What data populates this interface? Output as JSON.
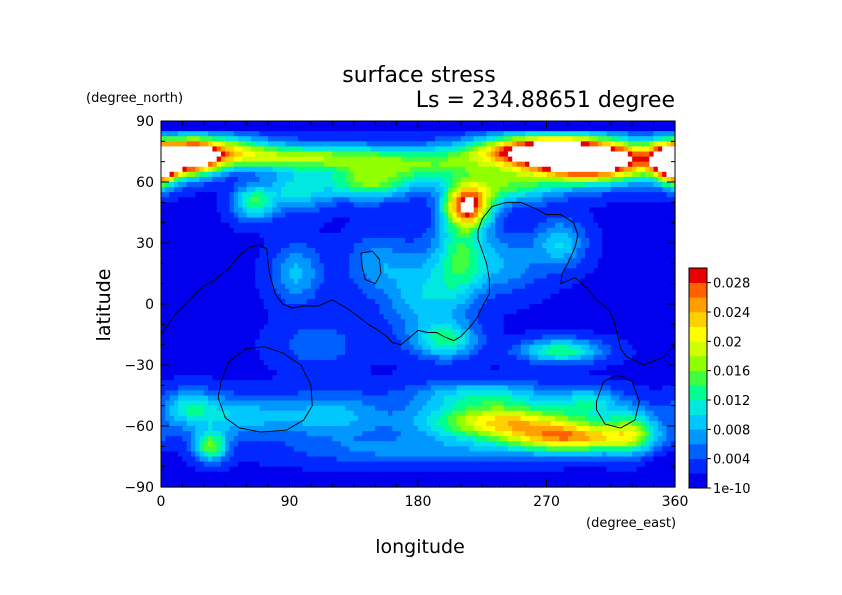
{
  "chart_data": {
    "type": "heatmap",
    "title": "surface stress",
    "subtitle": "Ls = 234.88651 degree",
    "xlabel": "longitude",
    "ylabel": "latitude",
    "x_unit": "(degree_east)",
    "y_unit": "(degree_north)",
    "xlim": [
      0,
      360
    ],
    "ylim": [
      -90,
      90
    ],
    "x_ticks": [
      0,
      90,
      180,
      270,
      360
    ],
    "y_ticks": [
      -90,
      -60,
      -30,
      0,
      30,
      60,
      90
    ],
    "x_tick_labels": [
      "0",
      "90",
      "180",
      "270",
      "360"
    ],
    "y_tick_labels": [
      "−90",
      "−60",
      "−30",
      "0",
      "30",
      "60",
      "90"
    ],
    "colorbar": {
      "min_label": "1e-10",
      "labels": [
        "1e-10",
        "0.004",
        "0.008",
        "0.012",
        "0.016",
        "0.02",
        "0.024",
        "0.028"
      ],
      "label_values": [
        0,
        0.004,
        0.008,
        0.012,
        0.016,
        0.02,
        0.024,
        0.028
      ],
      "vmin": 0,
      "vmax": 0.03,
      "levels": 15,
      "placement": "right",
      "colors": [
        "#0000ee",
        "#0028ff",
        "#0060ff",
        "#0098ff",
        "#00c8ff",
        "#00e8e0",
        "#00ff90",
        "#40ff40",
        "#90ff00",
        "#d0ff00",
        "#ffff00",
        "#ffd000",
        "#ffa000",
        "#ff6000",
        "#e80000"
      ]
    },
    "saturated_color": "#ffffff",
    "contour_color": "#000000",
    "blobs": [
      {
        "lon": 180,
        "lat": 72,
        "sx": 200,
        "sy": 5,
        "amp": 0.008
      },
      {
        "lon": 20,
        "lat": 72,
        "sx": 14,
        "sy": 6,
        "amp": 0.03
      },
      {
        "lon": 45,
        "lat": 76,
        "sx": 22,
        "sy": 5,
        "amp": 0.012
      },
      {
        "lon": 0,
        "lat": 66,
        "sx": 8,
        "sy": 6,
        "amp": 0.02
      },
      {
        "lon": 300,
        "lat": 70,
        "sx": 30,
        "sy": 7,
        "amp": 0.034
      },
      {
        "lon": 262,
        "lat": 76,
        "sx": 30,
        "sy": 5,
        "amp": 0.022
      },
      {
        "lon": 355,
        "lat": 72,
        "sx": 10,
        "sy": 6,
        "amp": 0.02
      },
      {
        "lon": 100,
        "lat": 72,
        "sx": 40,
        "sy": 4,
        "amp": 0.008
      },
      {
        "lon": 190,
        "lat": 66,
        "sx": 30,
        "sy": 5,
        "amp": 0.007
      },
      {
        "lon": 145,
        "lat": 60,
        "sx": 22,
        "sy": 6,
        "amp": 0.014
      },
      {
        "lon": 65,
        "lat": 50,
        "sx": 10,
        "sy": 6,
        "amp": 0.012
      },
      {
        "lon": 95,
        "lat": 56,
        "sx": 15,
        "sy": 7,
        "amp": 0.009
      },
      {
        "lon": 215,
        "lat": 48,
        "sx": 11,
        "sy": 7,
        "amp": 0.026
      },
      {
        "lon": 240,
        "lat": 58,
        "sx": 25,
        "sy": 6,
        "amp": 0.012
      },
      {
        "lon": 210,
        "lat": 25,
        "sx": 12,
        "sy": 15,
        "amp": 0.01
      },
      {
        "lon": 185,
        "lat": 5,
        "sx": 20,
        "sy": 15,
        "amp": 0.008
      },
      {
        "lon": 280,
        "lat": 30,
        "sx": 12,
        "sy": 8,
        "amp": 0.008
      },
      {
        "lon": 240,
        "lat": 20,
        "sx": 20,
        "sy": 10,
        "amp": 0.006
      },
      {
        "lon": 95,
        "lat": 15,
        "sx": 12,
        "sy": 10,
        "amp": 0.007
      },
      {
        "lon": 150,
        "lat": 20,
        "sx": 15,
        "sy": 10,
        "amp": 0.005
      },
      {
        "lon": 200,
        "lat": -18,
        "sx": 15,
        "sy": 6,
        "amp": 0.01
      },
      {
        "lon": 280,
        "lat": -23,
        "sx": 20,
        "sy": 4,
        "amp": 0.012
      },
      {
        "lon": 110,
        "lat": -20,
        "sx": 20,
        "sy": 8,
        "amp": 0.004
      },
      {
        "lon": 240,
        "lat": -58,
        "sx": 40,
        "sy": 6,
        "amp": 0.02
      },
      {
        "lon": 290,
        "lat": -66,
        "sx": 32,
        "sy": 5,
        "amp": 0.02
      },
      {
        "lon": 225,
        "lat": -45,
        "sx": 35,
        "sy": 5,
        "amp": 0.009
      },
      {
        "lon": 330,
        "lat": -62,
        "sx": 12,
        "sy": 8,
        "amp": 0.01
      },
      {
        "lon": 50,
        "lat": -55,
        "sx": 30,
        "sy": 7,
        "amp": 0.008
      },
      {
        "lon": 120,
        "lat": -55,
        "sx": 25,
        "sy": 8,
        "amp": 0.007
      },
      {
        "lon": 35,
        "lat": -70,
        "sx": 8,
        "sy": 5,
        "amp": 0.014
      },
      {
        "lon": 180,
        "lat": -72,
        "sx": 60,
        "sy": 5,
        "amp": 0.005
      },
      {
        "lon": 20,
        "lat": -50,
        "sx": 12,
        "sy": 6,
        "amp": 0.007
      },
      {
        "lon": 300,
        "lat": -48,
        "sx": 15,
        "sy": 5,
        "amp": 0.008
      }
    ],
    "low_regions": [
      {
        "lon": 355,
        "lat": -82,
        "sx": 10,
        "sy": 6
      }
    ],
    "topography_contours": [
      {
        "closed": false,
        "points": [
          [
            0,
            -15
          ],
          [
            10,
            -5
          ],
          [
            20,
            2
          ],
          [
            28,
            8
          ],
          [
            38,
            12
          ],
          [
            48,
            18
          ],
          [
            55,
            24
          ],
          [
            62,
            28
          ],
          [
            70,
            29
          ],
          [
            74,
            27
          ],
          [
            75,
            20
          ],
          [
            76,
            15
          ],
          [
            80,
            5
          ],
          [
            85,
            0
          ],
          [
            92,
            -2
          ],
          [
            100,
            -1
          ],
          [
            110,
            -1
          ],
          [
            120,
            2
          ],
          [
            125,
            0
          ],
          [
            130,
            -2
          ],
          [
            138,
            -6
          ],
          [
            145,
            -10
          ],
          [
            150,
            -12
          ],
          [
            158,
            -16
          ],
          [
            162,
            -19
          ],
          [
            168,
            -20
          ],
          [
            175,
            -16
          ],
          [
            180,
            -13
          ],
          [
            187,
            -14
          ],
          [
            193,
            -14
          ],
          [
            198,
            -16
          ],
          [
            205,
            -18
          ],
          [
            210,
            -16
          ],
          [
            218,
            -10
          ],
          [
            222,
            -6
          ],
          [
            226,
            0
          ],
          [
            230,
            5
          ],
          [
            230,
            12
          ],
          [
            228,
            20
          ],
          [
            225,
            26
          ],
          [
            222,
            32
          ],
          [
            222,
            36
          ],
          [
            225,
            42
          ],
          [
            232,
            48
          ],
          [
            242,
            50
          ],
          [
            252,
            50
          ],
          [
            262,
            47
          ],
          [
            270,
            44
          ],
          [
            280,
            44
          ],
          [
            289,
            40
          ],
          [
            292,
            34
          ],
          [
            290,
            28
          ],
          [
            285,
            20
          ],
          [
            281,
            15
          ],
          [
            280,
            10
          ],
          [
            290,
            13
          ],
          [
            298,
            8
          ],
          [
            305,
            2
          ],
          [
            314,
            -3
          ],
          [
            318,
            -10
          ],
          [
            320,
            -16
          ],
          [
            322,
            -22
          ],
          [
            326,
            -26
          ],
          [
            332,
            -28
          ],
          [
            338,
            -30
          ],
          [
            345,
            -28
          ],
          [
            352,
            -26
          ],
          [
            360,
            -20
          ]
        ]
      },
      {
        "closed": true,
        "points": [
          [
            140,
            25
          ],
          [
            148,
            26
          ],
          [
            153,
            22
          ],
          [
            154,
            15
          ],
          [
            150,
            10
          ],
          [
            143,
            12
          ],
          [
            141,
            18
          ]
        ]
      },
      {
        "closed": true,
        "points": [
          [
            42,
            -38
          ],
          [
            48,
            -28
          ],
          [
            60,
            -22
          ],
          [
            72,
            -21
          ],
          [
            85,
            -24
          ],
          [
            98,
            -30
          ],
          [
            105,
            -40
          ],
          [
            106,
            -50
          ],
          [
            100,
            -57
          ],
          [
            88,
            -62
          ],
          [
            70,
            -63
          ],
          [
            55,
            -61
          ],
          [
            45,
            -56
          ],
          [
            40,
            -46
          ]
        ]
      },
      {
        "closed": true,
        "points": [
          [
            305,
            -48
          ],
          [
            310,
            -38
          ],
          [
            320,
            -35
          ],
          [
            330,
            -38
          ],
          [
            335,
            -48
          ],
          [
            332,
            -57
          ],
          [
            322,
            -61
          ],
          [
            311,
            -59
          ],
          [
            305,
            -52
          ]
        ]
      }
    ]
  }
}
